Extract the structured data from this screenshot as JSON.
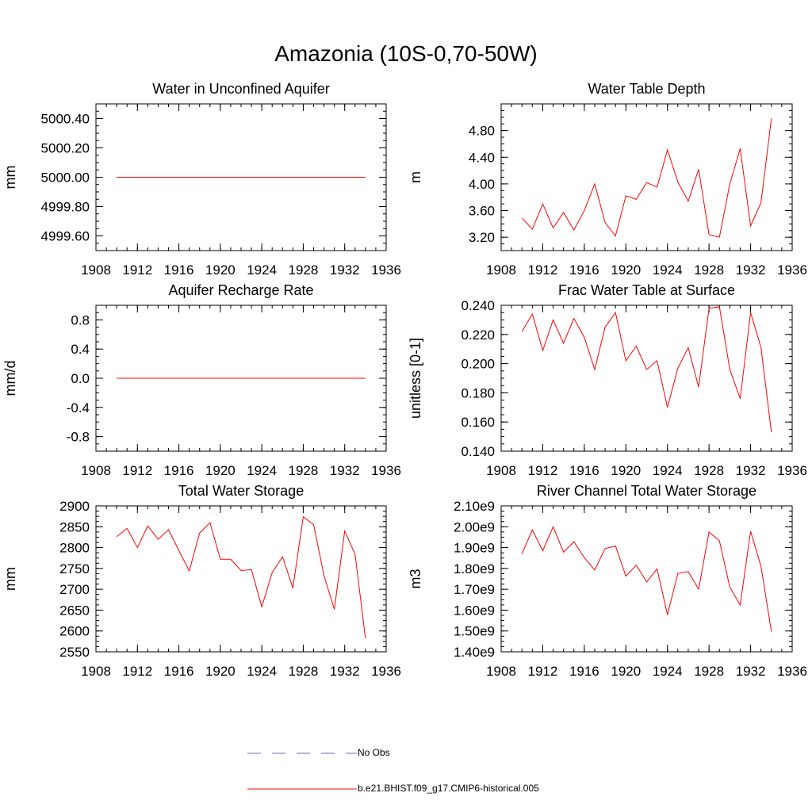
{
  "title": "Amazonia (10S-0,70-50W)",
  "legend": {
    "items": [
      {
        "label": "No Obs",
        "color": "#6a6ab0",
        "style": "dashed"
      },
      {
        "label": "b.e21.BHIST.f09_g17.CMIP6-historical.005",
        "color": "#ff0000",
        "style": "solid"
      }
    ]
  },
  "chart_data": [
    {
      "type": "line",
      "title": "Water in Unconfined Aquifer",
      "ylabel": "mm",
      "xlabel": "",
      "xlim": [
        1908,
        1936
      ],
      "ylim": [
        4999.5,
        5000.5
      ],
      "xticks": [
        1908,
        1912,
        1916,
        1920,
        1924,
        1928,
        1932,
        1936
      ],
      "xticklabels": [
        "1908",
        "1912",
        "1916",
        "1920",
        "1924",
        "1928",
        "1932",
        "1936"
      ],
      "yticks": [
        4999.6,
        4999.8,
        5000.0,
        5000.2,
        5000.4
      ],
      "yticklabels": [
        "4999.60",
        "4999.80",
        "5000.00",
        "5000.20",
        "5000.40"
      ],
      "x": [
        1910,
        1911,
        1912,
        1913,
        1914,
        1915,
        1916,
        1917,
        1918,
        1919,
        1920,
        1921,
        1922,
        1923,
        1924,
        1925,
        1926,
        1927,
        1928,
        1929,
        1930,
        1931,
        1932,
        1933,
        1934
      ],
      "series": [
        {
          "name": "b.e21.BHIST.f09_g17.CMIP6-historical.005",
          "color": "#ff0000",
          "values": [
            5000,
            5000,
            5000,
            5000,
            5000,
            5000,
            5000,
            5000,
            5000,
            5000,
            5000,
            5000,
            5000,
            5000,
            5000,
            5000,
            5000,
            5000,
            5000,
            5000,
            5000,
            5000,
            5000,
            5000,
            5000
          ]
        }
      ]
    },
    {
      "type": "line",
      "title": "Water Table Depth",
      "ylabel": "m",
      "xlabel": "",
      "xlim": [
        1908,
        1936
      ],
      "ylim": [
        3.0,
        5.2
      ],
      "xticks": [
        1908,
        1912,
        1916,
        1920,
        1924,
        1928,
        1932,
        1936
      ],
      "xticklabels": [
        "1908",
        "1912",
        "1916",
        "1920",
        "1924",
        "1928",
        "1932",
        "1936"
      ],
      "yticks": [
        3.2,
        3.6,
        4.0,
        4.4,
        4.8
      ],
      "yticklabels": [
        "3.20",
        "3.60",
        "4.00",
        "4.40",
        "4.80"
      ],
      "x": [
        1910,
        1911,
        1912,
        1913,
        1914,
        1915,
        1916,
        1917,
        1918,
        1919,
        1920,
        1921,
        1922,
        1923,
        1924,
        1925,
        1926,
        1927,
        1928,
        1929,
        1930,
        1931,
        1932,
        1933,
        1934
      ],
      "series": [
        {
          "name": "b.e21.BHIST.f09_g17.CMIP6-historical.005",
          "color": "#ff0000",
          "values": [
            3.49,
            3.32,
            3.7,
            3.34,
            3.57,
            3.31,
            3.6,
            4.0,
            3.42,
            3.22,
            3.82,
            3.77,
            4.02,
            3.95,
            4.51,
            4.03,
            3.74,
            4.22,
            3.24,
            3.2,
            4.0,
            4.53,
            3.37,
            3.72,
            4.98
          ]
        }
      ]
    },
    {
      "type": "line",
      "title": "Aquifer Recharge Rate",
      "ylabel": "mm/d",
      "xlabel": "",
      "xlim": [
        1908,
        1936
      ],
      "ylim": [
        -1.0,
        1.0
      ],
      "xticks": [
        1908,
        1912,
        1916,
        1920,
        1924,
        1928,
        1932,
        1936
      ],
      "xticklabels": [
        "1908",
        "1912",
        "1916",
        "1920",
        "1924",
        "1928",
        "1932",
        "1936"
      ],
      "yticks": [
        -0.8,
        -0.4,
        0.0,
        0.4,
        0.8
      ],
      "yticklabels": [
        "-0.8",
        "-0.4",
        "0.0",
        "0.4",
        "0.8"
      ],
      "x": [
        1910,
        1911,
        1912,
        1913,
        1914,
        1915,
        1916,
        1917,
        1918,
        1919,
        1920,
        1921,
        1922,
        1923,
        1924,
        1925,
        1926,
        1927,
        1928,
        1929,
        1930,
        1931,
        1932,
        1933,
        1934
      ],
      "series": [
        {
          "name": "b.e21.BHIST.f09_g17.CMIP6-historical.005",
          "color": "#ff0000",
          "values": [
            0,
            0,
            0,
            0,
            0,
            0,
            0,
            0,
            0,
            0,
            0,
            0,
            0,
            0,
            0,
            0,
            0,
            0,
            0,
            0,
            0,
            0,
            0,
            0,
            0
          ]
        }
      ]
    },
    {
      "type": "line",
      "title": "Frac Water Table at Surface",
      "ylabel": "unitless [0-1]",
      "xlabel": "",
      "xlim": [
        1908,
        1936
      ],
      "ylim": [
        0.14,
        0.24
      ],
      "xticks": [
        1908,
        1912,
        1916,
        1920,
        1924,
        1928,
        1932,
        1936
      ],
      "xticklabels": [
        "1908",
        "1912",
        "1916",
        "1920",
        "1924",
        "1928",
        "1932",
        "1936"
      ],
      "yticks": [
        0.14,
        0.16,
        0.18,
        0.2,
        0.22,
        0.24
      ],
      "yticklabels": [
        "0.140",
        "0.160",
        "0.180",
        "0.200",
        "0.220",
        "0.240"
      ],
      "x": [
        1910,
        1911,
        1912,
        1913,
        1914,
        1915,
        1916,
        1917,
        1918,
        1919,
        1920,
        1921,
        1922,
        1923,
        1924,
        1925,
        1926,
        1927,
        1928,
        1929,
        1930,
        1931,
        1932,
        1933,
        1934
      ],
      "series": [
        {
          "name": "b.e21.BHIST.f09_g17.CMIP6-historical.005",
          "color": "#ff0000",
          "values": [
            0.222,
            0.234,
            0.209,
            0.23,
            0.214,
            0.231,
            0.218,
            0.196,
            0.225,
            0.235,
            0.202,
            0.212,
            0.196,
            0.202,
            0.17,
            0.197,
            0.211,
            0.184,
            0.238,
            0.239,
            0.196,
            0.176,
            0.235,
            0.211,
            0.153
          ]
        }
      ]
    },
    {
      "type": "line",
      "title": "Total Water Storage",
      "ylabel": "mm",
      "xlabel": "",
      "xlim": [
        1908,
        1936
      ],
      "ylim": [
        2550,
        2900
      ],
      "xticks": [
        1908,
        1912,
        1916,
        1920,
        1924,
        1928,
        1932,
        1936
      ],
      "xticklabels": [
        "1908",
        "1912",
        "1916",
        "1920",
        "1924",
        "1928",
        "1932",
        "1936"
      ],
      "yticks": [
        2550,
        2600,
        2650,
        2700,
        2750,
        2800,
        2850,
        2900
      ],
      "yticklabels": [
        "2550",
        "2600",
        "2650",
        "2700",
        "2750",
        "2800",
        "2850",
        "2900"
      ],
      "x": [
        1910,
        1911,
        1912,
        1913,
        1914,
        1915,
        1916,
        1917,
        1918,
        1919,
        1920,
        1921,
        1922,
        1923,
        1924,
        1925,
        1926,
        1927,
        1928,
        1929,
        1930,
        1931,
        1932,
        1933,
        1934
      ],
      "series": [
        {
          "name": "b.e21.BHIST.f09_g17.CMIP6-historical.005",
          "color": "#ff0000",
          "values": [
            2826,
            2846,
            2800,
            2852,
            2820,
            2843,
            2793,
            2744,
            2835,
            2860,
            2772,
            2772,
            2745,
            2747,
            2658,
            2740,
            2778,
            2703,
            2874,
            2855,
            2733,
            2652,
            2840,
            2784,
            2582
          ]
        }
      ]
    },
    {
      "type": "line",
      "title": "River Channel Total Water Storage",
      "ylabel": "m3",
      "xlabel": "",
      "xlim": [
        1908,
        1936
      ],
      "ylim": [
        1400000000.0,
        2100000000.0
      ],
      "xticks": [
        1908,
        1912,
        1916,
        1920,
        1924,
        1928,
        1932,
        1936
      ],
      "xticklabels": [
        "1908",
        "1912",
        "1916",
        "1920",
        "1924",
        "1928",
        "1932",
        "1936"
      ],
      "yticks": [
        1400000000.0,
        1500000000.0,
        1600000000.0,
        1700000000.0,
        1800000000.0,
        1900000000.0,
        2000000000.0,
        2100000000.0
      ],
      "yticklabels": [
        "1.40e9",
        "1.50e9",
        "1.60e9",
        "1.70e9",
        "1.80e9",
        "1.90e9",
        "2.00e9",
        "2.10e9"
      ],
      "x": [
        1910,
        1911,
        1912,
        1913,
        1914,
        1915,
        1916,
        1917,
        1918,
        1919,
        1920,
        1921,
        1922,
        1923,
        1924,
        1925,
        1926,
        1927,
        1928,
        1929,
        1930,
        1931,
        1932,
        1933,
        1934
      ],
      "series": [
        {
          "name": "b.e21.BHIST.f09_g17.CMIP6-historical.005",
          "color": "#ff0000",
          "values": [
            1870000000.0,
            1985000000.0,
            1885000000.0,
            2000000000.0,
            1878000000.0,
            1928000000.0,
            1852000000.0,
            1792000000.0,
            1895000000.0,
            1908000000.0,
            1763000000.0,
            1816000000.0,
            1735000000.0,
            1798000000.0,
            1578000000.0,
            1776000000.0,
            1785000000.0,
            1700000000.0,
            1975000000.0,
            1932000000.0,
            1710000000.0,
            1625000000.0,
            1978000000.0,
            1810000000.0,
            1497000000.0
          ]
        }
      ]
    }
  ]
}
